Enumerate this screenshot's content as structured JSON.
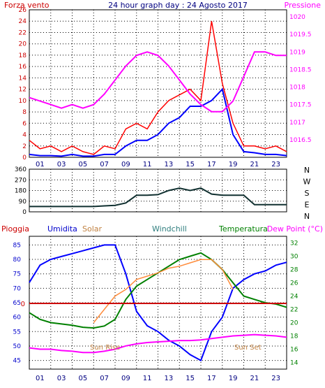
{
  "header": {
    "left_label": "Forza vento",
    "title": "24 hour graph day : 24 Agosto 2017",
    "right_label": "Pressione"
  },
  "colors": {
    "wind": "#ff0000",
    "gust": "#0000ff",
    "pressure": "#ff00ff",
    "direction": "#103030",
    "rain": "#cc0000",
    "humidity": "#0000ff",
    "solar": "#ff8c3c",
    "windchill": "#2e7d7d",
    "temperature": "#008000",
    "dewpoint": "#ff00ff",
    "grid": "#000000"
  },
  "hour_ticks": [
    "01",
    "03",
    "05",
    "07",
    "09",
    "11",
    "13",
    "15",
    "17",
    "19",
    "21",
    "23"
  ],
  "chart_data": [
    {
      "type": "line",
      "title": "24 hour graph day : 24 Agosto 2017",
      "ylabel": "Forza vento",
      "y2label": "Pressione",
      "ylim": [
        0,
        26
      ],
      "y_ticks": [
        "0",
        "2",
        "4",
        "6",
        "8",
        "10",
        "12",
        "14",
        "16",
        "18",
        "20",
        "22",
        "24",
        "26"
      ],
      "y2lim": [
        1016,
        1020.2
      ],
      "y2_ticks": [
        "1016.5",
        "1017",
        "1017.5",
        "1018",
        "1018.5",
        "1019",
        "1019.5",
        "1020"
      ],
      "x": [
        0,
        1,
        2,
        3,
        4,
        5,
        6,
        7,
        8,
        9,
        10,
        11,
        12,
        13,
        14,
        15,
        16,
        17,
        18,
        19,
        20,
        21,
        22,
        23,
        24
      ],
      "series": [
        {
          "key": "wind",
          "axis": "left",
          "values": [
            3,
            1.5,
            2,
            1,
            2,
            1,
            0.5,
            2,
            1.5,
            5,
            6,
            5,
            8,
            10,
            11,
            12,
            10,
            24,
            13,
            6,
            2,
            2,
            1.5,
            2,
            1
          ]
        },
        {
          "key": "gust",
          "axis": "left",
          "values": [
            0.5,
            0.3,
            0.3,
            0.2,
            0.5,
            0.2,
            0.2,
            0.5,
            0.5,
            2,
            3,
            3,
            4,
            6,
            7,
            9,
            9,
            10,
            12,
            4,
            1,
            0.8,
            0.5,
            0.5,
            0.3
          ]
        },
        {
          "key": "pressure",
          "axis": "right",
          "values": [
            1017.7,
            1017.6,
            1017.5,
            1017.4,
            1017.5,
            1017.4,
            1017.5,
            1017.8,
            1018.2,
            1018.6,
            1018.9,
            1019.0,
            1018.9,
            1018.6,
            1018.2,
            1017.8,
            1017.5,
            1017.3,
            1017.3,
            1017.6,
            1018.3,
            1019.0,
            1019.0,
            1018.9,
            1018.9
          ]
        }
      ]
    },
    {
      "type": "line",
      "ylim": [
        0,
        360
      ],
      "y_ticks": [
        "0",
        "90",
        "180",
        "270",
        "360"
      ],
      "compass": [
        "N",
        "W",
        "S",
        "E",
        "N"
      ],
      "x": [
        0,
        1,
        2,
        3,
        4,
        5,
        6,
        7,
        8,
        9,
        10,
        11,
        12,
        13,
        14,
        15,
        16,
        17,
        18,
        19,
        20,
        21,
        22,
        23,
        24
      ],
      "series": [
        {
          "key": "direction",
          "values": [
            45,
            45,
            45,
            45,
            45,
            45,
            45,
            50,
            55,
            75,
            140,
            140,
            145,
            180,
            200,
            180,
            200,
            150,
            140,
            140,
            140,
            60,
            60,
            60,
            60
          ]
        }
      ]
    },
    {
      "type": "line",
      "labels": {
        "rain": "Pioggia",
        "humidity": "Umidita",
        "solar": "Solar",
        "windchill": "Windchill",
        "temperature": "Temperatura",
        "dewpoint": "Dew Point (°C)"
      },
      "annotations": [
        "Sun Rise",
        "Sun Set"
      ],
      "rain_value": "0",
      "ylim": [
        42,
        88
      ],
      "y_ticks": [
        "45",
        "50",
        "55",
        "60",
        "65",
        "70",
        "75",
        "80",
        "85"
      ],
      "y2lim": [
        13,
        33
      ],
      "y2_ticks": [
        "14",
        "16",
        "18",
        "20",
        "22",
        "24",
        "26",
        "28",
        "30",
        "32"
      ],
      "x": [
        0,
        1,
        2,
        3,
        4,
        5,
        6,
        7,
        8,
        9,
        10,
        11,
        12,
        13,
        14,
        15,
        16,
        17,
        18,
        19,
        20,
        21,
        22,
        23,
        24
      ],
      "series": [
        {
          "key": "humidity",
          "axis": "left",
          "values": [
            72,
            78,
            80,
            81,
            82,
            83,
            84,
            85,
            85,
            75,
            62,
            57,
            55,
            52,
            50,
            47,
            45,
            55,
            60,
            70,
            73,
            75,
            76,
            78,
            79
          ]
        },
        {
          "key": "temperature",
          "axis": "right",
          "values": [
            21.5,
            20.5,
            20,
            19.8,
            19.6,
            19.3,
            19.2,
            19.5,
            20.5,
            23.5,
            25.5,
            26.5,
            27.5,
            28.5,
            29.5,
            30,
            30.5,
            29.5,
            28,
            26,
            24,
            23.5,
            23,
            22.8,
            22.3
          ]
        },
        {
          "key": "dewpoint",
          "axis": "right",
          "values": [
            16.2,
            16.0,
            16.0,
            15.8,
            15.7,
            15.5,
            15.5,
            15.7,
            16.0,
            16.5,
            16.8,
            17.0,
            17.1,
            17.2,
            17.3,
            17.3,
            17.4,
            17.6,
            17.8,
            18.0,
            18.1,
            18.2,
            18.1,
            18.0,
            17.8
          ]
        },
        {
          "key": "solar",
          "axis": "right",
          "values": [
            null,
            null,
            null,
            null,
            null,
            null,
            20,
            22,
            24,
            25,
            26.5,
            27,
            27.5,
            28.2,
            28.5,
            29,
            29.5,
            29.5,
            28,
            25,
            null,
            null,
            null,
            null,
            null
          ]
        }
      ]
    }
  ]
}
